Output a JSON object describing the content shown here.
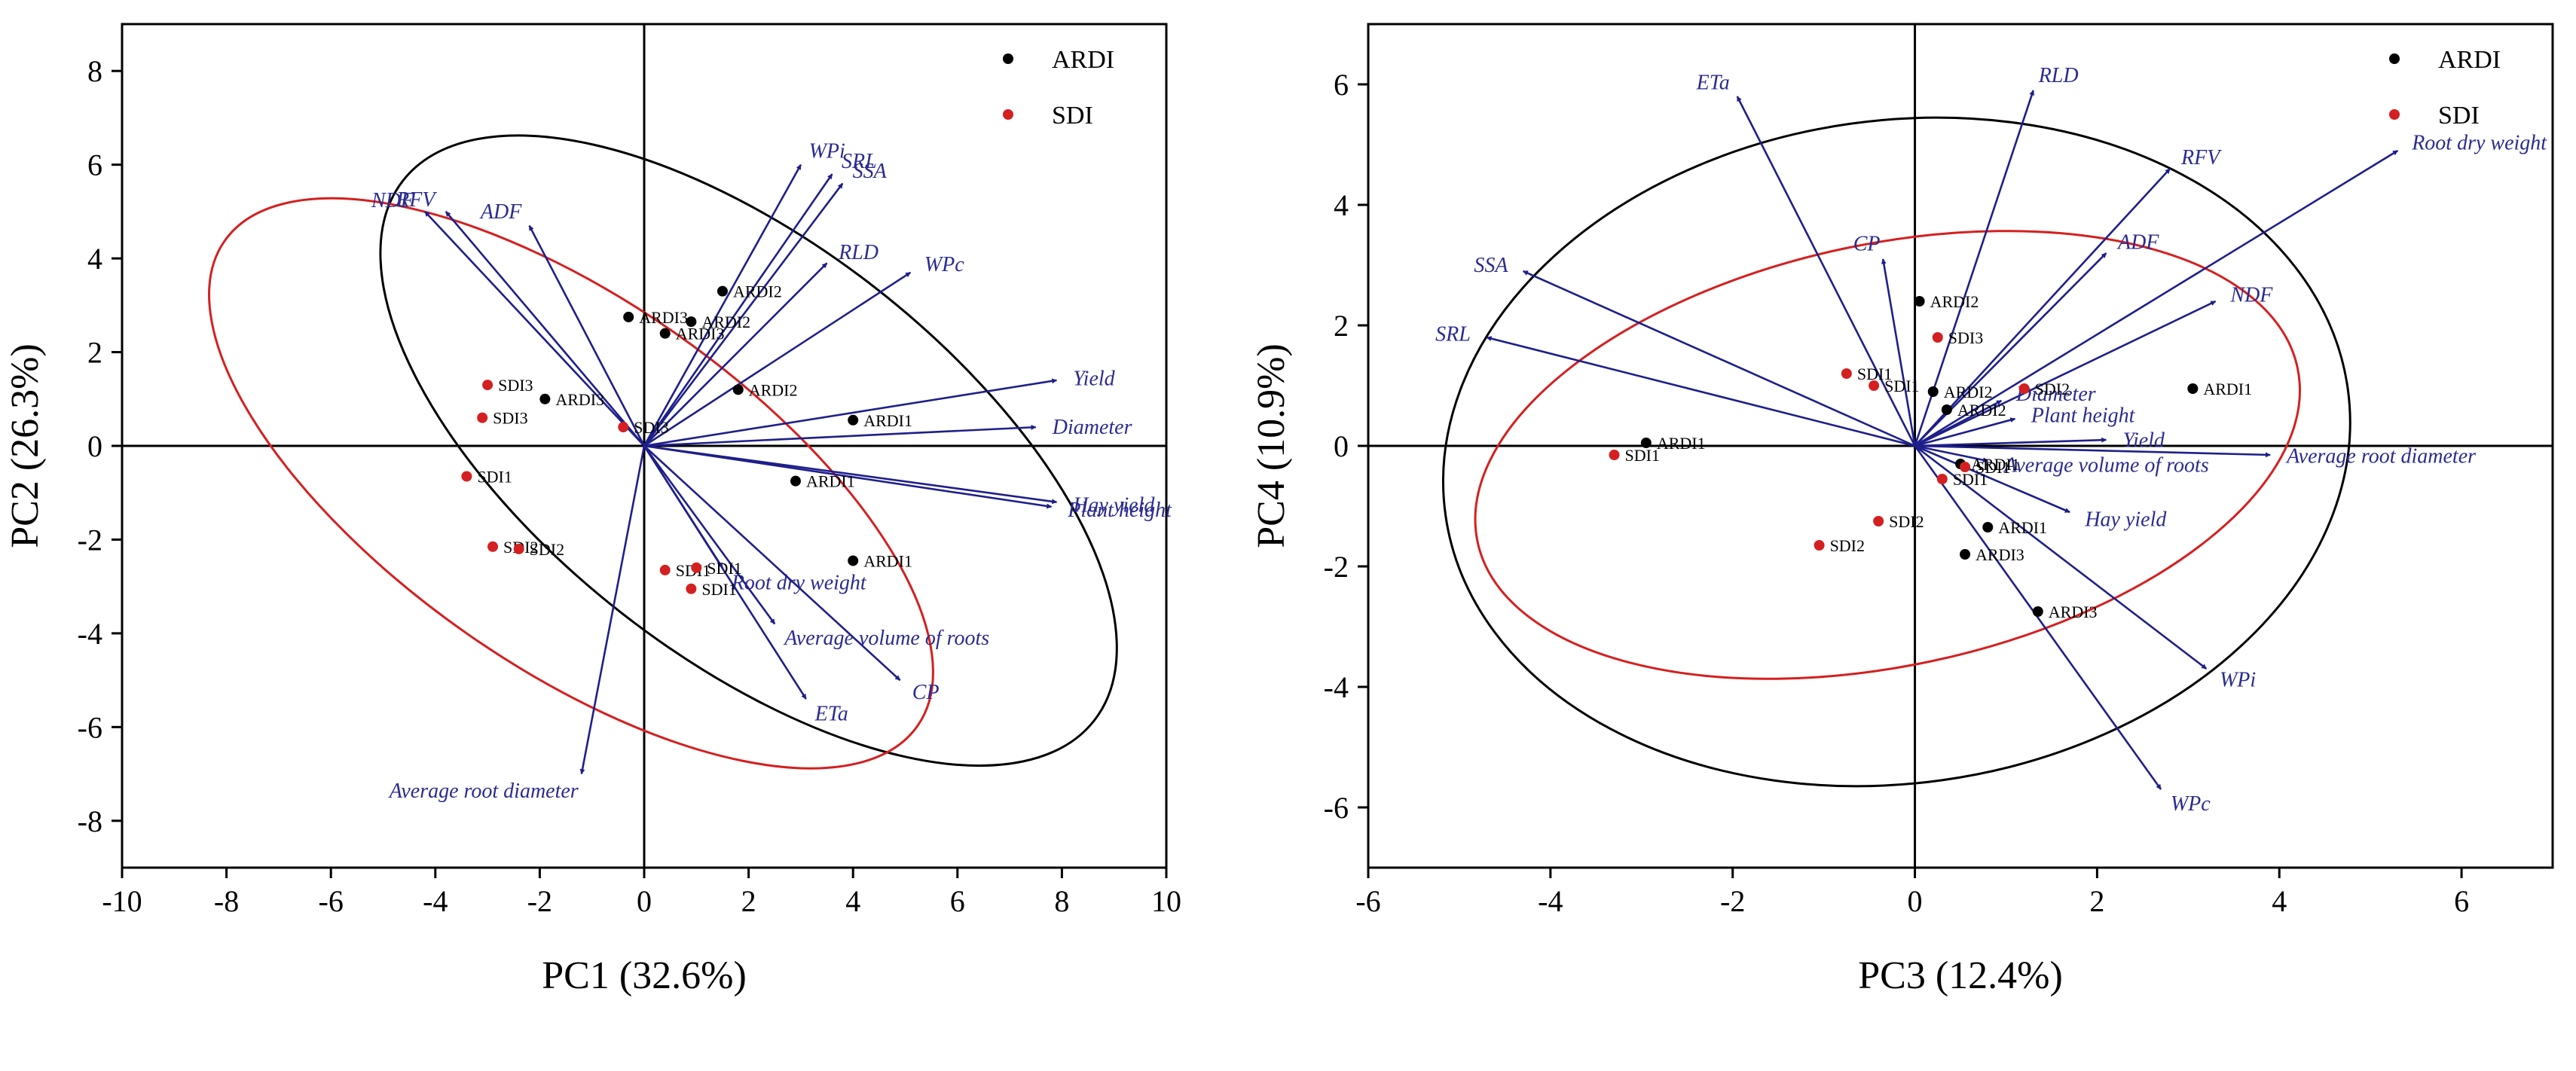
{
  "chart_data": [
    {
      "type": "scatter",
      "subtype": "pca-biplot",
      "xlabel": "PC1 (32.6%)",
      "ylabel": "PC2 (26.3%)",
      "xlim": [
        -10,
        10
      ],
      "ylim": [
        -9,
        9
      ],
      "xticks": [
        -10,
        -8,
        -6,
        -4,
        -2,
        0,
        2,
        4,
        6,
        8,
        10
      ],
      "yticks": [
        -8,
        -6,
        -4,
        -2,
        0,
        2,
        4,
        6,
        8
      ],
      "legend": {
        "position": "top-right",
        "entries": [
          {
            "name": "ARDI",
            "color": "#000000"
          },
          {
            "name": "SDI",
            "color": "#d42020"
          }
        ]
      },
      "series": [
        {
          "name": "ARDI",
          "color": "#000000",
          "points": [
            {
              "label": "ARDI3",
              "x": -0.3,
              "y": 2.75
            },
            {
              "label": "ARDI2",
              "x": 1.5,
              "y": 3.3
            },
            {
              "label": "ARDI2",
              "x": 0.9,
              "y": 2.65
            },
            {
              "label": "ARDI3",
              "x": 0.4,
              "y": 2.4
            },
            {
              "label": "ARDI3",
              "x": -1.9,
              "y": 1.0
            },
            {
              "label": "ARDI2",
              "x": 1.8,
              "y": 1.2
            },
            {
              "label": "ARDI1",
              "x": 4.0,
              "y": 0.55
            },
            {
              "label": "ARDI1",
              "x": 2.9,
              "y": -0.75
            },
            {
              "label": "ARDI1",
              "x": 4.0,
              "y": -2.45
            }
          ]
        },
        {
          "name": "SDI",
          "color": "#d42020",
          "points": [
            {
              "label": "SDI3",
              "x": -3.0,
              "y": 1.3
            },
            {
              "label": "SDI3",
              "x": -3.1,
              "y": 0.6
            },
            {
              "label": "SDI3",
              "x": -0.4,
              "y": 0.4
            },
            {
              "label": "SDI1",
              "x": -3.4,
              "y": -0.65
            },
            {
              "label": "SDI2",
              "x": -2.9,
              "y": -2.15
            },
            {
              "label": "SDI2",
              "x": -2.4,
              "y": -2.2
            },
            {
              "label": "SDI1",
              "x": 0.4,
              "y": -2.65
            },
            {
              "label": "SDI1",
              "x": 1.0,
              "y": -2.6
            },
            {
              "label": "SDI1",
              "x": 0.9,
              "y": -3.05
            }
          ]
        }
      ],
      "vectors": [
        {
          "label": "NDF",
          "x": -4.2,
          "y": 5.0
        },
        {
          "label": "RFV",
          "x": -3.8,
          "y": 5.0
        },
        {
          "label": "ADF",
          "x": -2.2,
          "y": 4.7
        },
        {
          "label": "WPi",
          "x": 3.0,
          "y": 6.0
        },
        {
          "label": "SRL",
          "x": 3.6,
          "y": 5.8
        },
        {
          "label": "SSA",
          "x": 3.8,
          "y": 5.6
        },
        {
          "label": "RLD",
          "x": 3.5,
          "y": 3.9
        },
        {
          "label": "WPc",
          "x": 5.1,
          "y": 3.7
        },
        {
          "label": "Yield",
          "x": 7.9,
          "y": 1.4
        },
        {
          "label": "Diameter",
          "x": 7.5,
          "y": 0.4
        },
        {
          "label": "Hay yield",
          "x": 7.9,
          "y": -1.2
        },
        {
          "label": "Plant height",
          "x": 7.8,
          "y": -1.3
        },
        {
          "label": "Root dry weight",
          "x": 1.5,
          "y": -2.6
        },
        {
          "label": "Average volume of roots",
          "x": 2.5,
          "y": -3.8
        },
        {
          "label": "CP",
          "x": 4.9,
          "y": -5.0
        },
        {
          "label": "ETa",
          "x": 3.1,
          "y": -5.4
        },
        {
          "label": "Average root diameter",
          "x": -1.2,
          "y": -7.0
        }
      ],
      "ellipses": [
        {
          "group": "ARDI",
          "color": "#000000",
          "cx": 2.0,
          "cy": -0.1,
          "rx": 8.4,
          "ry": 4.4,
          "angle_deg": -38
        },
        {
          "group": "SDI",
          "color": "#d42020",
          "cx": -1.4,
          "cy": -0.8,
          "rx": 8.1,
          "ry": 3.9,
          "angle_deg": -35
        }
      ]
    },
    {
      "type": "scatter",
      "subtype": "pca-biplot",
      "xlabel": "PC3 (12.4%)",
      "ylabel": "PC4 (10.9%)",
      "xlim": [
        -6,
        7
      ],
      "ylim": [
        -7,
        7
      ],
      "xticks": [
        -6,
        -4,
        -2,
        0,
        2,
        4,
        6
      ],
      "yticks": [
        -6,
        -4,
        -2,
        0,
        2,
        4,
        6
      ],
      "legend": {
        "position": "top-right",
        "entries": [
          {
            "name": "ARDI",
            "color": "#000000"
          },
          {
            "name": "SDI",
            "color": "#d42020"
          }
        ]
      },
      "series": [
        {
          "name": "ARDI",
          "color": "#000000",
          "points": [
            {
              "label": "ARDI2",
              "x": 0.05,
              "y": 2.4
            },
            {
              "label": "ARDI2",
              "x": 0.2,
              "y": 0.9
            },
            {
              "label": "ARDI2",
              "x": 0.35,
              "y": 0.6
            },
            {
              "label": "ARDI1",
              "x": 3.05,
              "y": 0.95
            },
            {
              "label": "ARDI1",
              "x": -2.95,
              "y": 0.05
            },
            {
              "label": "ARDI1",
              "x": 0.8,
              "y": -1.35
            },
            {
              "label": "ARDI3",
              "x": 0.55,
              "y": -1.8
            },
            {
              "label": "ARDI3",
              "x": 1.35,
              "y": -2.75
            },
            {
              "label": "ARDI1",
              "x": 0.5,
              "y": -0.3
            }
          ]
        },
        {
          "name": "SDI",
          "color": "#d42020",
          "points": [
            {
              "label": "SDI3",
              "x": 0.25,
              "y": 1.8
            },
            {
              "label": "SDI1",
              "x": -0.75,
              "y": 1.2
            },
            {
              "label": "SDI1",
              "x": -0.45,
              "y": 1.0
            },
            {
              "label": "SDI2",
              "x": 1.2,
              "y": 0.95
            },
            {
              "label": "SDI1",
              "x": -3.3,
              "y": -0.15
            },
            {
              "label": "SDI2",
              "x": -0.4,
              "y": -1.25
            },
            {
              "label": "SDI2",
              "x": -1.05,
              "y": -1.65
            },
            {
              "label": "SDI1",
              "x": 0.55,
              "y": -0.35
            },
            {
              "label": "SDI1",
              "x": 0.3,
              "y": -0.55
            }
          ]
        }
      ],
      "vectors": [
        {
          "label": "ETa",
          "x": -1.95,
          "y": 5.8
        },
        {
          "label": "RLD",
          "x": 1.3,
          "y": 5.9
        },
        {
          "label": "RFV",
          "x": 2.8,
          "y": 4.6
        },
        {
          "label": "Root dry weight",
          "x": 5.3,
          "y": 4.9
        },
        {
          "label": "ADF",
          "x": 2.1,
          "y": 3.2
        },
        {
          "label": "NDF",
          "x": 3.3,
          "y": 2.4
        },
        {
          "label": "CP",
          "x": -0.35,
          "y": 3.1
        },
        {
          "label": "SSA",
          "x": -4.3,
          "y": 2.9
        },
        {
          "label": "SRL",
          "x": -4.7,
          "y": 1.8
        },
        {
          "label": "Diameter",
          "x": 0.95,
          "y": 0.75
        },
        {
          "label": "Plant height",
          "x": 1.1,
          "y": 0.45
        },
        {
          "label": "Yield",
          "x": 2.1,
          "y": 0.1
        },
        {
          "label": "Average volume of roots",
          "x": 0.8,
          "y": -0.25
        },
        {
          "label": "Average root diameter",
          "x": 3.9,
          "y": -0.15
        },
        {
          "label": "Hay yield",
          "x": 1.7,
          "y": -1.1
        },
        {
          "label": "WPi",
          "x": 3.2,
          "y": -3.7
        },
        {
          "label": "WPc",
          "x": 2.7,
          "y": -5.7
        }
      ],
      "ellipses": [
        {
          "group": "ARDI",
          "color": "#000000",
          "cx": -0.2,
          "cy": -0.1,
          "rx": 5.0,
          "ry": 5.5,
          "angle_deg": 8
        },
        {
          "group": "SDI",
          "color": "#d42020",
          "cx": -0.3,
          "cy": -0.15,
          "rx": 4.6,
          "ry": 3.5,
          "angle_deg": 12
        }
      ]
    }
  ]
}
